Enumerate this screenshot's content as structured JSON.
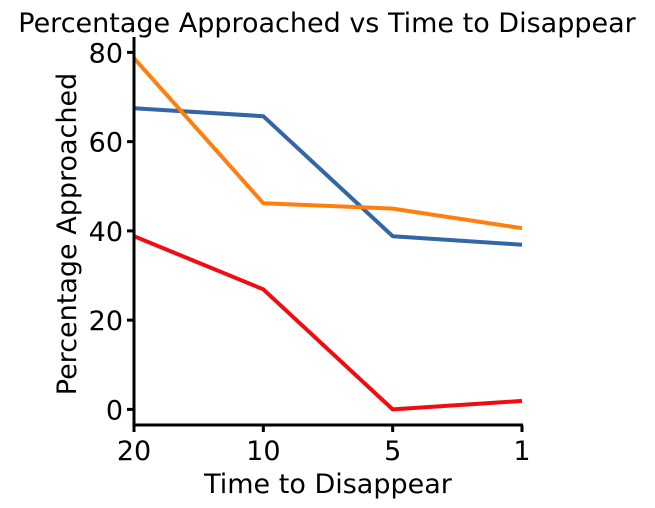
{
  "chart_data": {
    "type": "line",
    "title": "Percentage Approached vs Time to Disappear",
    "xlabel": "Time to Disappear",
    "ylabel": "Percentage Approached",
    "categories": [
      "20",
      "10",
      "5",
      "1"
    ],
    "ylim": [
      -3.5,
      83
    ],
    "yticks": [
      0,
      20,
      40,
      60,
      80
    ],
    "grid": false,
    "legend": "none",
    "series": [
      {
        "values": [
          67.5,
          65.7,
          38.8,
          36.9
        ],
        "color": "#3465a4"
      },
      {
        "values": [
          78.7,
          46.2,
          45.0,
          40.6
        ],
        "color": "#ff7f0e"
      },
      {
        "values": [
          38.8,
          26.9,
          0.0,
          1.9
        ],
        "color": "#f20c12"
      }
    ]
  }
}
